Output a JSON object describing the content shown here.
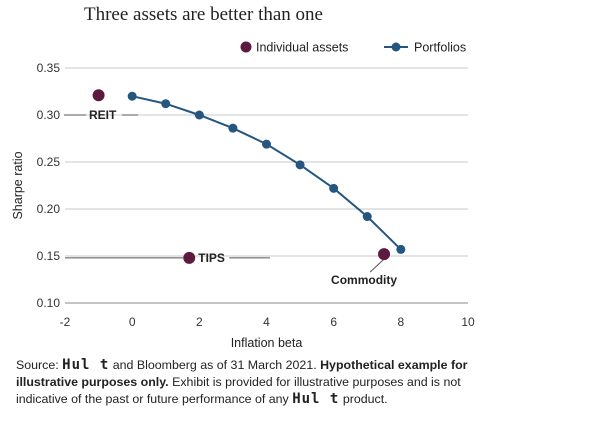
{
  "title": "Three assets are better than one",
  "colors": {
    "individual": "#5e1a3e",
    "portfolio": "#24567f",
    "grid": "#c8c8c8",
    "leader": "#555555"
  },
  "footnote": {
    "prefix": "Source:",
    "brand1": "Hul t",
    "part2": "and Bloomberg as of 31 March 2021.",
    "bold": "Hypothetical example for illustrative purposes only.",
    "part3": "Exhibit is provided for illustrative purposes and is not indicative of the past or future performance of any",
    "brand2": "Hul t",
    "part4": "product."
  },
  "chart_data": {
    "type": "scatter",
    "title": "Three assets are better than one",
    "xlabel": "Inflation beta",
    "ylabel": "Sharpe ratio",
    "xlim": [
      -2,
      10
    ],
    "ylim": [
      0.1,
      0.35
    ],
    "xticks": [
      -2,
      0,
      2,
      4,
      6,
      8,
      10
    ],
    "yticks": [
      "0.10",
      "0.15",
      "0.20",
      "0.25",
      "0.30",
      "0.35"
    ],
    "grid": "horizontal",
    "legend_position": "top",
    "legend": [
      "Individual assets",
      "Portfolios"
    ],
    "series": [
      {
        "name": "Individual assets",
        "kind": "points",
        "points": [
          {
            "label": "REIT",
            "x": -1.0,
            "y": 0.321
          },
          {
            "label": "TIPS",
            "x": 1.7,
            "y": 0.148
          },
          {
            "label": "Commodity",
            "x": 7.5,
            "y": 0.152
          }
        ]
      },
      {
        "name": "Portfolios",
        "kind": "line",
        "x": [
          0,
          1,
          2,
          3,
          4,
          5,
          6,
          7,
          8
        ],
        "y": [
          0.32,
          0.312,
          0.3,
          0.286,
          0.269,
          0.247,
          0.222,
          0.192,
          0.157
        ]
      }
    ]
  }
}
